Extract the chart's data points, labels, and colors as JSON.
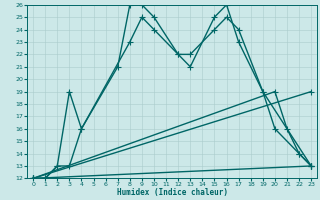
{
  "xlabel": "Humidex (Indice chaleur)",
  "xlim": [
    -0.5,
    23.5
  ],
  "ylim": [
    12,
    26
  ],
  "xticks": [
    0,
    1,
    2,
    3,
    4,
    5,
    6,
    7,
    8,
    9,
    10,
    11,
    12,
    13,
    14,
    15,
    16,
    17,
    18,
    19,
    20,
    21,
    22,
    23
  ],
  "yticks": [
    12,
    13,
    14,
    15,
    16,
    17,
    18,
    19,
    20,
    21,
    22,
    23,
    24,
    25,
    26
  ],
  "bg_color": "#cce8e8",
  "grid_color": "#aacccc",
  "line_color": "#006666",
  "line_width": 1.0,
  "marker": "+",
  "marker_size": 4,
  "curves": [
    {
      "x": [
        0,
        1,
        2,
        3,
        4,
        7,
        8,
        9,
        10,
        12,
        13,
        15,
        16,
        17,
        19,
        20,
        22,
        23
      ],
      "y": [
        12,
        12,
        13,
        19,
        16,
        21,
        26,
        26,
        25,
        22,
        21,
        25,
        26,
        23,
        19,
        16,
        14,
        13
      ]
    },
    {
      "x": [
        0,
        1,
        2,
        3,
        4,
        8,
        9,
        10,
        12,
        13,
        15,
        16,
        17,
        19,
        23
      ],
      "y": [
        12,
        12,
        13,
        13,
        16,
        23,
        25,
        24,
        22,
        22,
        24,
        25,
        24,
        19,
        13
      ]
    },
    {
      "x": [
        0,
        20,
        21,
        22,
        23
      ],
      "y": [
        12,
        19,
        16,
        14,
        13
      ]
    },
    {
      "x": [
        0,
        23
      ],
      "y": [
        12,
        19
      ]
    },
    {
      "x": [
        0,
        23
      ],
      "y": [
        12,
        13
      ]
    }
  ]
}
